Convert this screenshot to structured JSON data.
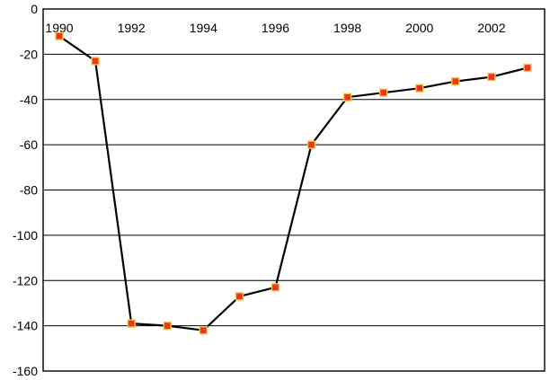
{
  "chart_data": {
    "type": "line",
    "title": "",
    "xlabel": "",
    "ylabel": "",
    "x": [
      1990,
      1991,
      1992,
      1993,
      1994,
      1995,
      1996,
      1997,
      1998,
      1999,
      2000,
      2001,
      2002,
      2003
    ],
    "x_tick_labels": [
      "1990",
      "1992",
      "1994",
      "1996",
      "1998",
      "2000",
      "2002"
    ],
    "y_tick_labels": [
      "0",
      "-20",
      "-40",
      "-60",
      "-80",
      "-100",
      "-120",
      "-140",
      "-160"
    ],
    "ylim": [
      -160,
      0
    ],
    "xlim": [
      1990,
      2003
    ],
    "grid": true,
    "x_axis_position": "top",
    "series": [
      {
        "values": [
          -12,
          -23,
          -139,
          -140,
          -142,
          -127,
          -123,
          -60,
          -39,
          -37,
          -35,
          -32,
          -30,
          -26
        ],
        "line_color": "#000000",
        "marker_color": "#e8342b",
        "marker_edge_color": "#f2c84b"
      }
    ]
  }
}
